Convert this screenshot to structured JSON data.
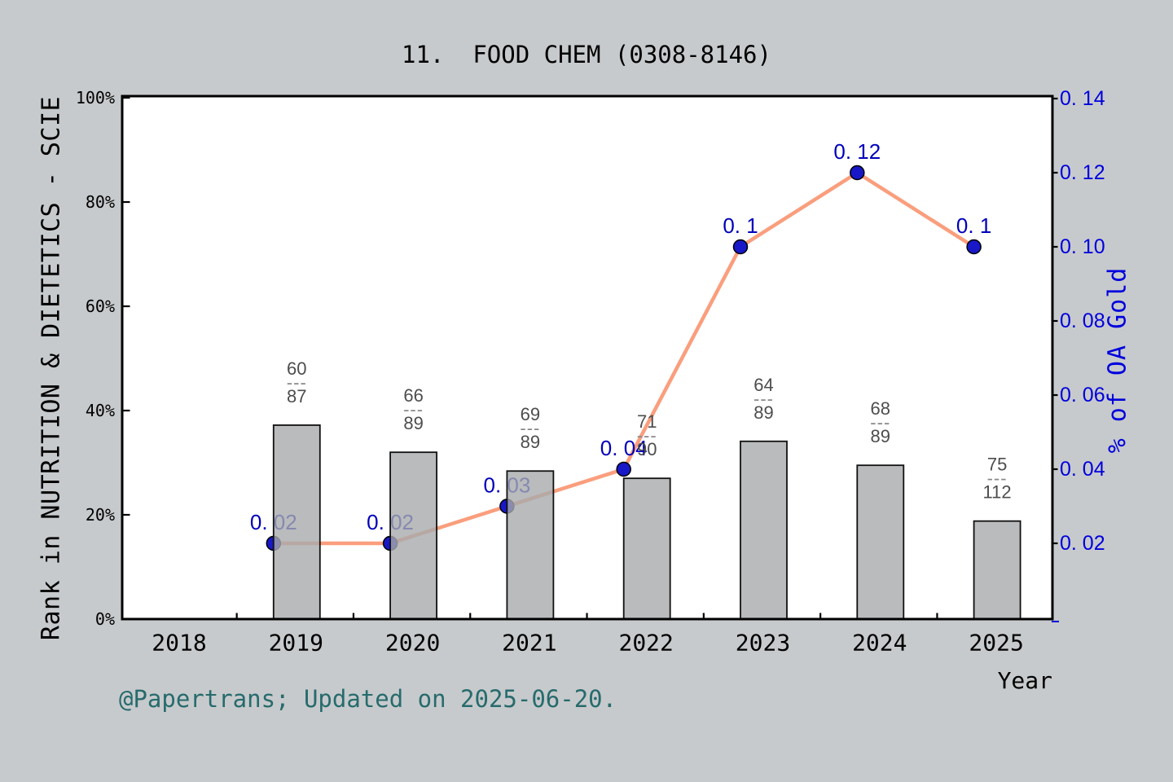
{
  "title": "11.  FOOD CHEM (0308-8146)",
  "footer": "@Papertrans; Updated on 2025-06-20.",
  "x_axis": {
    "label": "Year",
    "tick_labels": [
      "2018",
      "2019",
      "2020",
      "2021",
      "2022",
      "2023",
      "2024",
      "2025"
    ],
    "tick_values": [
      2018,
      2019,
      2020,
      2021,
      2022,
      2023,
      2024,
      2025
    ]
  },
  "left_axis": {
    "label": "Rank in NUTRITION & DIETETICS - SCIE",
    "tick_labels": [
      "0%",
      "20%",
      "40%",
      "60%",
      "80%",
      "100%"
    ],
    "tick_values": [
      0,
      20,
      40,
      60,
      80,
      100
    ]
  },
  "right_axis": {
    "label": "% of OA Gold",
    "tick_labels": [
      "0. 02",
      "0. 04",
      "0. 06",
      "0. 08",
      "0. 10",
      "0. 12",
      "0. 14"
    ],
    "tick_values": [
      0.02,
      0.04,
      0.06,
      0.08,
      0.1,
      0.12,
      0.14
    ]
  },
  "chart_data": {
    "type": "bar+line",
    "title": "11.  FOOD CHEM (0308-8146)",
    "x": [
      2019,
      2020,
      2021,
      2022,
      2023,
      2024,
      2025
    ],
    "xlabel": "Year",
    "left_ylabel": "Rank in NUTRITION & DIETETICS - SCIE",
    "right_ylabel": "% of OA Gold",
    "left_ylim": [
      0,
      100
    ],
    "right_ylim": [
      0,
      0.141
    ],
    "x_range": [
      2017.5,
      2025.5
    ],
    "grid": false,
    "legend": "none",
    "fraction_separator": "---",
    "series": [
      {
        "name": "Rank fraction (bars, left axis)",
        "type": "bar",
        "fractions": [
          [
            "60",
            "87"
          ],
          [
            "66",
            "89"
          ],
          [
            "69",
            "89"
          ],
          [
            "71",
            "90"
          ],
          [
            "64",
            "89"
          ],
          [
            "68",
            "89"
          ],
          [
            "75",
            "112"
          ]
        ],
        "numerators": [
          60,
          66,
          69,
          71,
          64,
          68,
          75
        ],
        "denominators": [
          87,
          89,
          89,
          90,
          89,
          89,
          112
        ],
        "bar_top_pct": [
          37.2,
          32.0,
          28.4,
          27.0,
          34.1,
          29.5,
          18.8
        ]
      },
      {
        "name": "% of OA Gold (line, right axis)",
        "type": "line",
        "values": [
          0.02,
          0.02,
          0.03,
          0.04,
          0.1,
          0.12,
          0.1
        ],
        "point_labels": [
          "0. 02",
          "0. 02",
          "0. 03",
          "0. 04",
          "0. 1",
          "0. 12",
          "0. 1"
        ]
      }
    ],
    "colors": {
      "background": "#c7cacc",
      "plot_background": "#ffffff",
      "frame": "#000000",
      "bar_fill": "rgba(167,170,172,0.8)",
      "bar_edge": "#111111",
      "line": "#fa9e7d",
      "point_fill": "#1818c8",
      "point_edge": "#000000",
      "value_label": "#0000bb",
      "right_axis_text": "#0000dd",
      "fraction_label": "#4d4d4d",
      "fraction_dash": "#888888",
      "axis_text": "#000000",
      "footer_text": "#276b6d"
    }
  }
}
